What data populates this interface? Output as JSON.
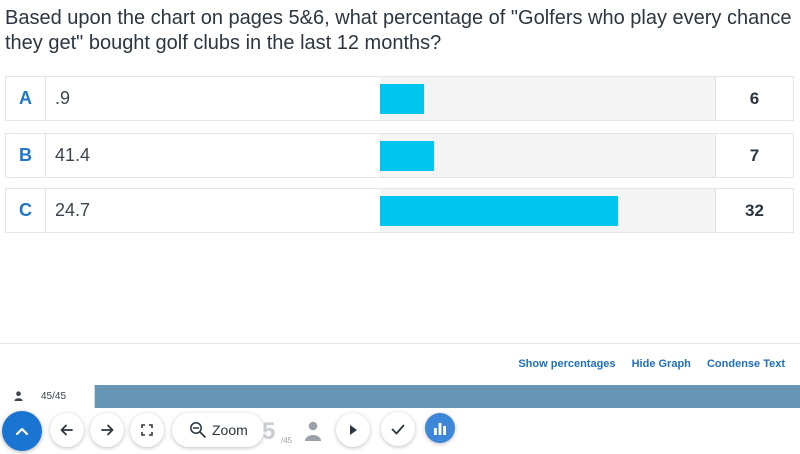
{
  "question": {
    "text": "Based upon the chart on pages  5&6, what percentage of \"Golfers who play every chance they get\" bought golf clubs in the last 12 months?"
  },
  "answers": [
    {
      "letter": "A",
      "text": ".9",
      "count": "6",
      "bar_fraction": 0.132
    },
    {
      "letter": "B",
      "text": "41.4",
      "count": "7",
      "bar_fraction": 0.162
    },
    {
      "letter": "C",
      "text": "24.7",
      "count": "32",
      "bar_fraction": 0.71
    }
  ],
  "footer": {
    "show_percentages": "Show percentages",
    "hide_graph": "Hide Graph",
    "condense_text": "Condense Text"
  },
  "progress": {
    "label": "45/45",
    "fraction": 1.0
  },
  "toolbar": {
    "zoom_label": "Zoom",
    "page_current": "5",
    "page_total": "/45"
  },
  "colors": {
    "bar": "#00c6ef",
    "accent": "#1a75d2",
    "progress": "#6797b4",
    "link": "#1f6fbf"
  }
}
